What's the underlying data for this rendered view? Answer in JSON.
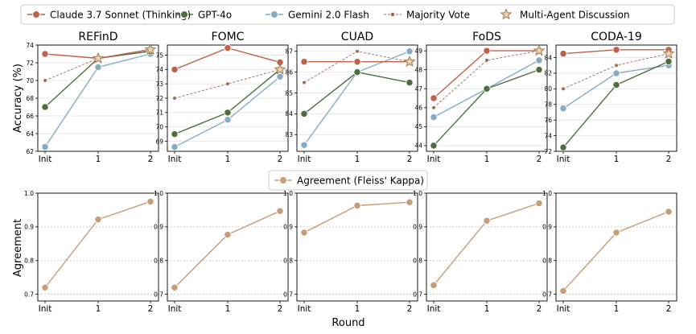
{
  "legend_top": [
    {
      "label": "Claude 3.7 Sonnet (Thinking)",
      "color": "#c0604a",
      "marker": "circle",
      "style": "solid"
    },
    {
      "label": "GPT-4o",
      "color": "#4e6e3f",
      "marker": "circle",
      "style": "solid"
    },
    {
      "label": "Gemini 2.0 Flash",
      "color": "#86abc6",
      "marker": "circle",
      "style": "solid"
    },
    {
      "label": "Majority Vote",
      "color": "#9a6a58",
      "marker": "circle",
      "style": "dashed"
    },
    {
      "label": "Multi-Agent Discussion",
      "color": "#a07a50",
      "marker": "star",
      "style": "none"
    }
  ],
  "legend_bottom": {
    "label": "Agreement (Fleiss' Kappa)",
    "color": "#c49d79"
  },
  "chart_data": [
    {
      "type": "line",
      "title": "REFinD",
      "ylabel": "Accuracy (%)",
      "categories": [
        "Init",
        "1",
        "2"
      ],
      "ylim": [
        62,
        74
      ],
      "yticks": [
        "62",
        "64",
        "66",
        "68",
        "70",
        "72",
        "74"
      ],
      "grid": "horizontal",
      "series": [
        {
          "name": "Claude 3.7 Sonnet (Thinking)",
          "values": [
            73,
            72.5,
            73.5
          ]
        },
        {
          "name": "GPT-4o",
          "values": [
            67,
            72.5,
            73.3
          ]
        },
        {
          "name": "Gemini 2.0 Flash",
          "values": [
            62.5,
            71.5,
            73
          ]
        },
        {
          "name": "Majority Vote",
          "values": [
            70,
            72.5,
            73.5
          ]
        }
      ],
      "star": {
        "name": "Multi-Agent Discussion",
        "values": [
          null,
          72.5,
          73.5
        ]
      }
    },
    {
      "type": "line",
      "title": "FOMC",
      "ylabel": "",
      "categories": [
        "Init",
        "1",
        "2"
      ],
      "ylim": [
        68.3,
        75.7
      ],
      "yticks": [
        "69",
        "70",
        "71",
        "72",
        "73",
        "74",
        "75"
      ],
      "grid": "horizontal",
      "series": [
        {
          "name": "Claude 3.7 Sonnet (Thinking)",
          "values": [
            74,
            75.5,
            74.5
          ]
        },
        {
          "name": "GPT-4o",
          "values": [
            69.5,
            71,
            74
          ]
        },
        {
          "name": "Gemini 2.0 Flash",
          "values": [
            68.6,
            70.5,
            73.5
          ]
        },
        {
          "name": "Majority Vote",
          "values": [
            72,
            73,
            74
          ]
        }
      ],
      "star": {
        "name": "Multi-Agent Discussion",
        "values": [
          null,
          null,
          74
        ]
      }
    },
    {
      "type": "line",
      "title": "CUAD",
      "ylabel": "",
      "categories": [
        "Init",
        "1",
        "2"
      ],
      "ylim": [
        82.2,
        87.3
      ],
      "yticks": [
        "83",
        "84",
        "85",
        "86",
        "87"
      ],
      "grid": "horizontal",
      "series": [
        {
          "name": "Claude 3.7 Sonnet (Thinking)",
          "values": [
            86.5,
            86.5,
            86.5
          ]
        },
        {
          "name": "GPT-4o",
          "values": [
            84,
            86,
            85.5
          ]
        },
        {
          "name": "Gemini 2.0 Flash",
          "values": [
            82.5,
            86,
            87
          ]
        },
        {
          "name": "Majority Vote",
          "values": [
            85.5,
            87,
            86.5
          ]
        }
      ],
      "star": {
        "name": "Multi-Agent Discussion",
        "values": [
          null,
          null,
          86.5
        ]
      }
    },
    {
      "type": "line",
      "title": "FoDS",
      "ylabel": "",
      "categories": [
        "Init",
        "1",
        "2"
      ],
      "ylim": [
        43.7,
        49.3
      ],
      "yticks": [
        "44",
        "45",
        "46",
        "47",
        "48",
        "49"
      ],
      "grid": "horizontal",
      "series": [
        {
          "name": "Claude 3.7 Sonnet (Thinking)",
          "values": [
            46.5,
            49,
            49
          ]
        },
        {
          "name": "GPT-4o",
          "values": [
            44,
            47,
            48
          ]
        },
        {
          "name": "Gemini 2.0 Flash",
          "values": [
            45.5,
            47,
            48.5
          ]
        },
        {
          "name": "Majority Vote",
          "values": [
            46,
            48.5,
            49
          ]
        }
      ],
      "star": {
        "name": "Multi-Agent Discussion",
        "values": [
          null,
          null,
          49
        ]
      }
    },
    {
      "type": "line",
      "title": "CODA-19",
      "ylabel": "",
      "categories": [
        "Init",
        "1",
        "2"
      ],
      "ylim": [
        72,
        85.6
      ],
      "yticks": [
        "72",
        "74",
        "76",
        "78",
        "80",
        "82",
        "84"
      ],
      "grid": "horizontal",
      "series": [
        {
          "name": "Claude 3.7 Sonnet (Thinking)",
          "values": [
            84.5,
            85,
            85
          ]
        },
        {
          "name": "GPT-4o",
          "values": [
            72.5,
            80.5,
            83.5
          ]
        },
        {
          "name": "Gemini 2.0 Flash",
          "values": [
            77.5,
            82,
            83
          ]
        },
        {
          "name": "Majority Vote",
          "values": [
            80,
            83,
            84.5
          ]
        }
      ],
      "star": {
        "name": "Multi-Agent Discussion",
        "values": [
          null,
          null,
          84.5
        ]
      }
    },
    {
      "type": "line",
      "title": "",
      "ylabel": "Agreement",
      "xlabel": "",
      "categories": [
        "Init",
        "1",
        "2"
      ],
      "ylim": [
        0.68,
        1.0
      ],
      "yticks": [
        "0.7",
        "0.8",
        "0.9",
        "1.0"
      ],
      "grid": "horizontal",
      "series": [
        {
          "name": "Agreement (Fleiss' Kappa)",
          "values": [
            0.72,
            0.922,
            0.975
          ]
        }
      ]
    },
    {
      "type": "line",
      "title": "",
      "ylabel": "",
      "xlabel": "",
      "categories": [
        "Init",
        "1",
        "2"
      ],
      "ylim": [
        0.68,
        1.0
      ],
      "yticks": [
        "0.7",
        "0.8",
        "0.9",
        "1.0"
      ],
      "grid": "horizontal",
      "series": [
        {
          "name": "Agreement (Fleiss' Kappa)",
          "values": [
            0.72,
            0.877,
            0.947
          ]
        }
      ]
    },
    {
      "type": "line",
      "title": "",
      "ylabel": "",
      "xlabel": "Round",
      "categories": [
        "Init",
        "1",
        "2"
      ],
      "ylim": [
        0.68,
        1.0
      ],
      "yticks": [
        "0.7",
        "0.8",
        "0.9",
        "1.0"
      ],
      "grid": "horizontal",
      "series": [
        {
          "name": "Agreement (Fleiss' Kappa)",
          "values": [
            0.883,
            0.963,
            0.973
          ]
        }
      ]
    },
    {
      "type": "line",
      "title": "",
      "ylabel": "",
      "xlabel": "",
      "categories": [
        "Init",
        "1",
        "2"
      ],
      "ylim": [
        0.68,
        1.0
      ],
      "yticks": [
        "0.7",
        "0.8",
        "0.9",
        "1.0"
      ],
      "grid": "horizontal",
      "series": [
        {
          "name": "Agreement (Fleiss' Kappa)",
          "values": [
            0.727,
            0.918,
            0.97
          ]
        }
      ]
    },
    {
      "type": "line",
      "title": "",
      "ylabel": "",
      "xlabel": "",
      "categories": [
        "Init",
        "1",
        "2"
      ],
      "ylim": [
        0.68,
        1.0
      ],
      "yticks": [
        "0.7",
        "0.8",
        "0.9",
        "1.0"
      ],
      "grid": "horizontal",
      "series": [
        {
          "name": "Agreement (Fleiss' Kappa)",
          "values": [
            0.71,
            0.883,
            0.945
          ]
        }
      ]
    }
  ]
}
